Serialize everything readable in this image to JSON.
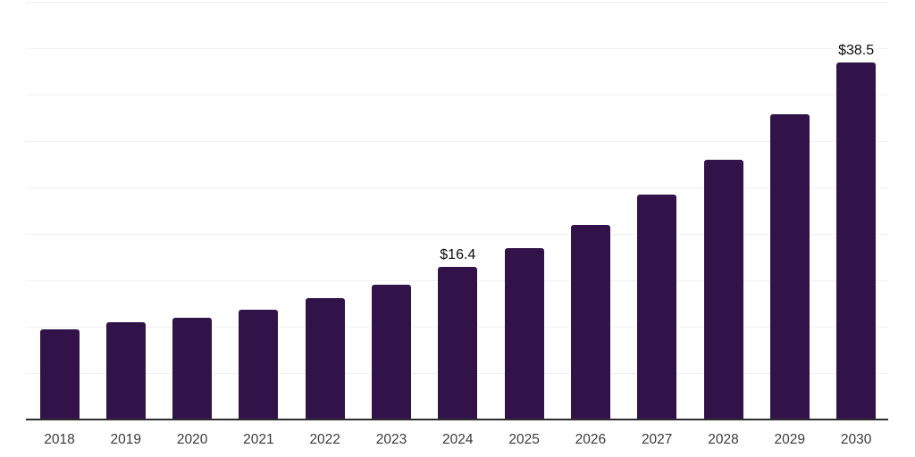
{
  "chart_data": {
    "type": "bar",
    "title": "",
    "xlabel": "",
    "ylabel": "",
    "categories": [
      "2018",
      "2019",
      "2020",
      "2021",
      "2022",
      "2023",
      "2024",
      "2025",
      "2026",
      "2027",
      "2028",
      "2029",
      "2030"
    ],
    "values": [
      9.7,
      10.5,
      11.0,
      11.8,
      13.1,
      14.5,
      16.4,
      18.5,
      21.0,
      24.2,
      28.0,
      32.9,
      38.5
    ],
    "point_labels": [
      "",
      "",
      "",
      "",
      "",
      "",
      "$16.4",
      "",
      "",
      "",
      "",
      "",
      "$38.5"
    ],
    "ylim": [
      0,
      45
    ],
    "grid_step": 5,
    "grid": true,
    "legend": false,
    "y_axis_labels_visible": false,
    "colors": {
      "bar": "#31134a",
      "gridline": "#f1f1f1",
      "axis_line": "#2d2d2d",
      "tick_label": "#3a3a3a",
      "value_label": "#0a0a0a",
      "background": "#ffffff"
    }
  }
}
